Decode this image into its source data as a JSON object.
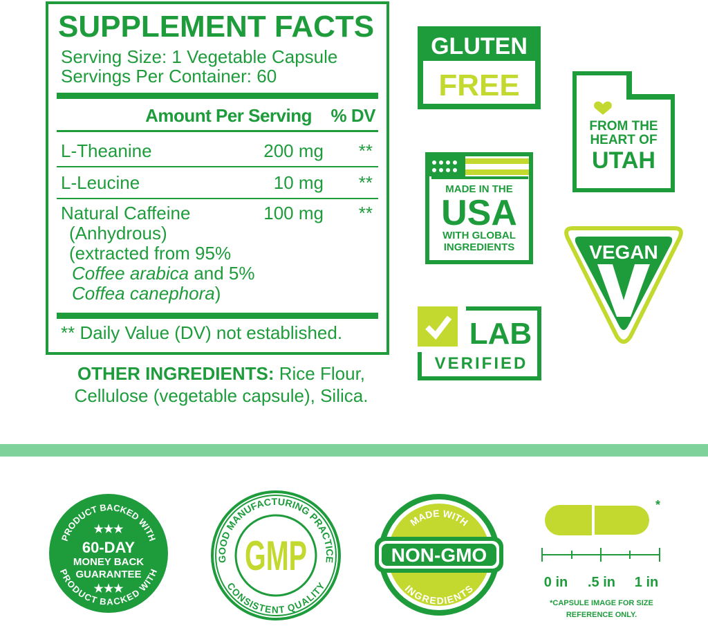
{
  "colors": {
    "green": "#1e9c3c",
    "lime": "#c3d92f",
    "band": "#7fd39a"
  },
  "facts": {
    "title": "SUPPLEMENT FACTS",
    "serving_size": "Serving Size: 1 Vegetable Capsule",
    "servings_per_container": "Servings Per Container: 60",
    "col_amount": "Amount Per Serving",
    "col_dv": "% DV",
    "rows": [
      {
        "name": "L-Theanine",
        "amount": "200 mg",
        "dv": "**"
      },
      {
        "name": "L-Leucine",
        "amount": "10 mg",
        "dv": "**"
      },
      {
        "name": "Natural Caffeine",
        "amount": "100 mg",
        "dv": "**",
        "sub1": "(Anhydrous)",
        "sub2": "(extracted from 95%",
        "sub3a": "Coffee arabica",
        "sub3b": " and 5%",
        "sub4a": "Coffea canephora",
        "sub4b": ")"
      }
    ],
    "footnote": "** Daily Value (DV) not established."
  },
  "other": {
    "label": "OTHER INGREDIENTS:",
    "text1": " Rice Flour,",
    "text2": "Cellulose (vegetable capsule), Silica."
  },
  "badges": {
    "gluten": {
      "top": "GLUTEN",
      "bottom": "FREE"
    },
    "utah": {
      "line1": "FROM THE",
      "line2": "HEART OF",
      "line3": "UTAH"
    },
    "usa": {
      "line1": "MADE IN THE",
      "line2": "USA",
      "line3": "WITH GLOBAL",
      "line4": "INGREDIENTS"
    },
    "vegan": {
      "label": "VEGAN"
    },
    "lab": {
      "line1": "LAB",
      "line2": "VERIFIED"
    },
    "guarantee": {
      "arc": "PRODUCT BACKED WITH",
      "line1": "60-DAY",
      "line2": "MONEY BACK",
      "line3": "GUARANTEE",
      "stars": "★★★"
    },
    "gmp": {
      "arc_top": "GOOD MANUFACTURING PRACTICE",
      "arc_bottom": "CONSISTENT QUALITY",
      "center": "GMP"
    },
    "nongmo": {
      "arc_top": "MADE WITH",
      "center": "NON-GMO",
      "arc_bottom": "INGREDIENTS"
    },
    "capsule": {
      "asterisk": "*",
      "ticks": [
        "0 in",
        ".5 in",
        "1 in"
      ],
      "note1": "*CAPSULE IMAGE FOR SIZE",
      "note2": "REFERENCE ONLY."
    }
  }
}
